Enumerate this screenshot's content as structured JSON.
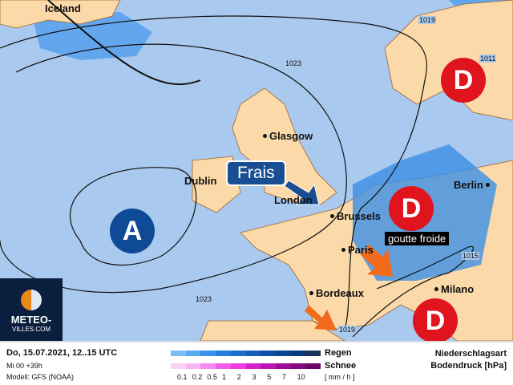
{
  "map": {
    "cities": [
      "Iceland",
      "Glasgow",
      "Dublin",
      "London",
      "Brussels",
      "Paris",
      "Bordeaux",
      "Milano",
      "Berlin"
    ],
    "isobars": [
      "1023",
      "1023",
      "1019",
      "1019",
      "1015",
      "1011"
    ],
    "highs": [
      "A"
    ],
    "lows": [
      "D",
      "D",
      "D"
    ],
    "annotations": {
      "frais": "Frais",
      "goutte": "goutte froide"
    },
    "colors": {
      "sea": "#a9c9ee",
      "land": "#fcd9a8",
      "low": "#e0141d",
      "high": "#0f4a96",
      "arrow": "#f26a1b",
      "rain": "#3a8ee6"
    }
  },
  "logo": {
    "text1": "METEO-",
    "text2": "VILLES.COM"
  },
  "legend": {
    "date": "Do, 15.07.2021, 12..15 UTC",
    "run": "Mi 00 +39h",
    "model": "Modell: GFS (NOAA)",
    "rain_label": "Regen",
    "snow_label": "Schnee",
    "unit": "[ mm / h ]",
    "ticks": [
      "0.1",
      "0.2",
      "0.5",
      "1",
      "2",
      "3",
      "5",
      "7",
      "10"
    ],
    "rain_colors": [
      "#7bbdf7",
      "#5aa9f3",
      "#3a93ea",
      "#2480de",
      "#1a6fcf",
      "#155fbb",
      "#0f50a5",
      "#0b4490",
      "#0a3a7a",
      "#1a3558"
    ],
    "snow_colors": [
      "#fbd0f5",
      "#f8b7f1",
      "#f78af0",
      "#f45de9",
      "#ef3be1",
      "#d623cc",
      "#bb16b4",
      "#9c0e98",
      "#83097f",
      "#6a0667"
    ],
    "title1": "Niederschlagsart",
    "title2": "Bodendruck [hPa]"
  }
}
